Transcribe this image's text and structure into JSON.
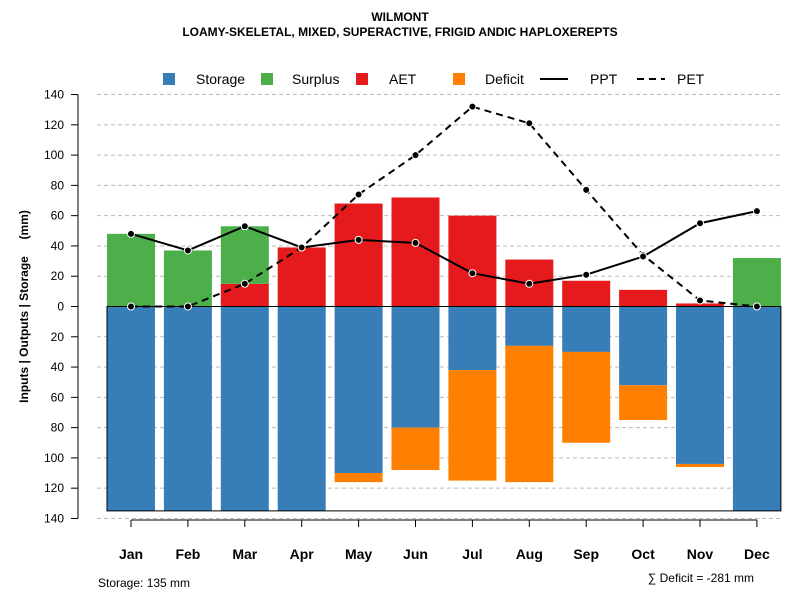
{
  "title_line1": "WILMONT",
  "title_line2": "LOAMY-SKELETAL, MIXED, SUPERACTIVE, FRIGID ANDIC HAPLOXEREPTS",
  "footer_left": "Storage: 135 mm",
  "footer_right": "∑ Deficit = -281 mm",
  "colors": {
    "storage": "#377EB8",
    "surplus": "#4DAF4A",
    "aet": "#E41A1C",
    "deficit": "#FF7F00",
    "line": "#000000",
    "grid": "#bbbbbb"
  },
  "chart_data": {
    "type": "bar",
    "subtype": "water-balance stacked bars with PPT/PET lines",
    "title": "WILMONT",
    "subtitle": "LOAMY-SKELETAL, MIXED, SUPERACTIVE, FRIGID ANDIC HAPLOXEREPTS",
    "ylabel": "Inputs | Outputs | Storage     (mm)",
    "xlabel": "",
    "categories": [
      "Jan",
      "Feb",
      "Mar",
      "Apr",
      "May",
      "Jun",
      "Jul",
      "Aug",
      "Sep",
      "Oct",
      "Nov",
      "Dec"
    ],
    "ylim": [
      -140,
      140
    ],
    "yticks": [
      140,
      120,
      100,
      80,
      60,
      40,
      20,
      0,
      20,
      40,
      60,
      80,
      100,
      120,
      140
    ],
    "legend": {
      "position": "top",
      "entries": [
        {
          "key": "storage",
          "label": "Storage",
          "kind": "box"
        },
        {
          "key": "surplus",
          "label": "Surplus",
          "kind": "box"
        },
        {
          "key": "aet",
          "label": "AET",
          "kind": "box"
        },
        {
          "key": "deficit",
          "label": "Deficit",
          "kind": "box"
        },
        {
          "key": "ppt",
          "label": "PPT",
          "kind": "solid"
        },
        {
          "key": "pet",
          "label": "PET",
          "kind": "dashed"
        }
      ]
    },
    "series": [
      {
        "name": "AET",
        "key": "aet",
        "values": [
          0,
          0,
          15,
          39,
          68,
          72,
          60,
          31,
          17,
          11,
          2,
          0
        ]
      },
      {
        "name": "Surplus",
        "key": "surplus",
        "values": [
          48,
          37,
          38,
          0,
          0,
          0,
          0,
          0,
          0,
          0,
          0,
          32
        ]
      },
      {
        "name": "Storage",
        "key": "storage",
        "values": [
          135,
          135,
          135,
          135,
          110,
          80,
          42,
          26,
          30,
          52,
          104,
          135
        ]
      },
      {
        "name": "Deficit",
        "key": "deficit",
        "values": [
          0,
          0,
          0,
          0,
          6,
          28,
          73,
          90,
          60,
          23,
          2,
          0
        ]
      },
      {
        "name": "PPT",
        "key": "ppt",
        "values": [
          48,
          37,
          53,
          39,
          44,
          42,
          22,
          15,
          21,
          33,
          55,
          63
        ]
      },
      {
        "name": "PET",
        "key": "pet",
        "values": [
          0,
          0,
          15,
          39,
          74,
          100,
          132,
          121,
          77,
          34,
          4,
          0
        ]
      }
    ]
  }
}
